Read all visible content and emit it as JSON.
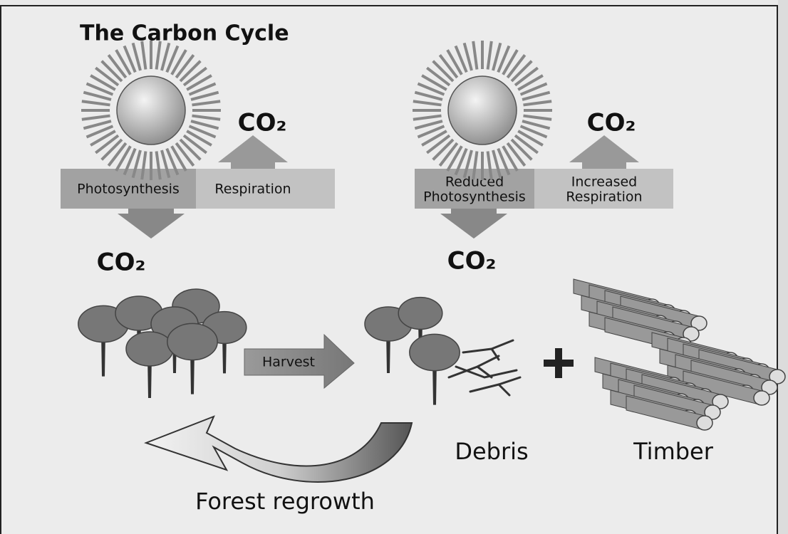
{
  "title": "The Carbon Cycle",
  "left": {
    "photosynthesis": "Photosynthesis",
    "respiration": "Respiration",
    "co2_up": "CO₂",
    "co2_down": "CO₂"
  },
  "right": {
    "photosynthesis": [
      "Reduced",
      "Photosynthesis"
    ],
    "respiration": [
      "Increased",
      "Respiration"
    ],
    "co2_up": "CO₂",
    "co2_down": "CO₂"
  },
  "harvest": "Harvest",
  "debris": "Debris",
  "timber": "Timber",
  "regrowth": "Forest regrowth"
}
